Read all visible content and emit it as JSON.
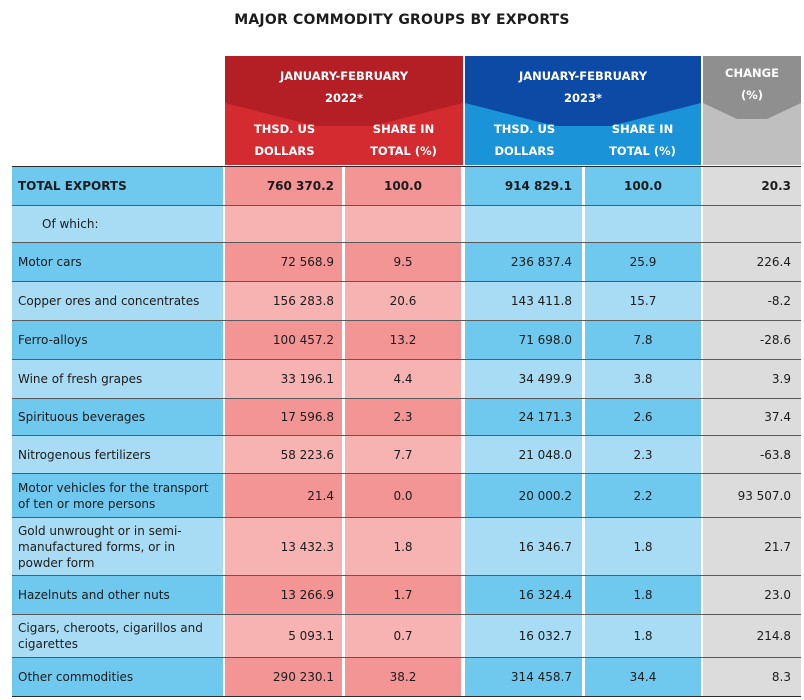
{
  "title": "MAJOR COMMODITY GROUPS BY EXPORTS",
  "header": {
    "period_2022_line1": "JANUARY-FEBRUARY",
    "period_2022_line2": "2022*",
    "period_2023_line1": "JANUARY-FEBRUARY",
    "period_2023_line2": "2023*",
    "change_line1": "CHANGE",
    "change_line2": "(%)",
    "thsd_line1": "THSD. US",
    "thsd_line2": "DOLLARS",
    "share_line1": "SHARE IN",
    "share_line2": "TOTAL (%)"
  },
  "colors": {
    "red_dark": "#b31f25",
    "red": "#d42b31",
    "blue_dark": "#0d4aa6",
    "blue": "#1a93d8",
    "grey": "#bfbfbf"
  },
  "rows": [
    {
      "label": "TOTAL EXPORTS",
      "v2022": "760 370.2",
      "s2022": "100.0",
      "v2023": "914 829.1",
      "s2023": "100.0",
      "change": "20.3"
    },
    {
      "label": "Of which:",
      "v2022": "",
      "s2022": "",
      "v2023": "",
      "s2023": "",
      "change": ""
    },
    {
      "label": "Motor cars",
      "v2022": "72 568.9",
      "s2022": "9.5",
      "v2023": "236 837.4",
      "s2023": "25.9",
      "change": "226.4"
    },
    {
      "label": "Copper ores and concentrates",
      "v2022": "156 283.8",
      "s2022": "20.6",
      "v2023": "143 411.8",
      "s2023": "15.7",
      "change": "-8.2"
    },
    {
      "label": "Ferro-alloys",
      "v2022": "100 457.2",
      "s2022": "13.2",
      "v2023": "71 698.0",
      "s2023": "7.8",
      "change": "-28.6"
    },
    {
      "label": "Wine of fresh grapes",
      "v2022": "33 196.1",
      "s2022": "4.4",
      "v2023": "34 499.9",
      "s2023": "3.8",
      "change": "3.9"
    },
    {
      "label": "Spirituous beverages",
      "v2022": "17 596.8",
      "s2022": "2.3",
      "v2023": "24 171.3",
      "s2023": "2.6",
      "change": "37.4"
    },
    {
      "label": "Nitrogenous fertilizers",
      "v2022": "58 223.6",
      "s2022": "7.7",
      "v2023": "21 048.0",
      "s2023": "2.3",
      "change": "-63.8"
    },
    {
      "label": "Motor vehicles for the transport of ten or more persons",
      "v2022": "21.4",
      "s2022": "0.0",
      "v2023": "20 000.2",
      "s2023": "2.2",
      "change": "93 507.0"
    },
    {
      "label": "Gold unwrought or in semi-manufactured forms, or in powder form",
      "v2022": "13 432.3",
      "s2022": "1.8",
      "v2023": "16 346.7",
      "s2023": "1.8",
      "change": "21.7"
    },
    {
      "label": "Hazelnuts and other nuts",
      "v2022": "13 266.9",
      "s2022": "1.7",
      "v2023": "16 324.4",
      "s2023": "1.8",
      "change": "23.0"
    },
    {
      "label": "Cigars, cheroots, cigarillos and cigarettes",
      "v2022": "5 093.1",
      "s2022": "0.7",
      "v2023": "16 032.7",
      "s2023": "1.8",
      "change": "214.8"
    },
    {
      "label": "Other commodities",
      "v2022": "290 230.1",
      "s2022": "38.2",
      "v2023": "314 458.7",
      "s2023": "34.4",
      "change": "8.3"
    }
  ]
}
